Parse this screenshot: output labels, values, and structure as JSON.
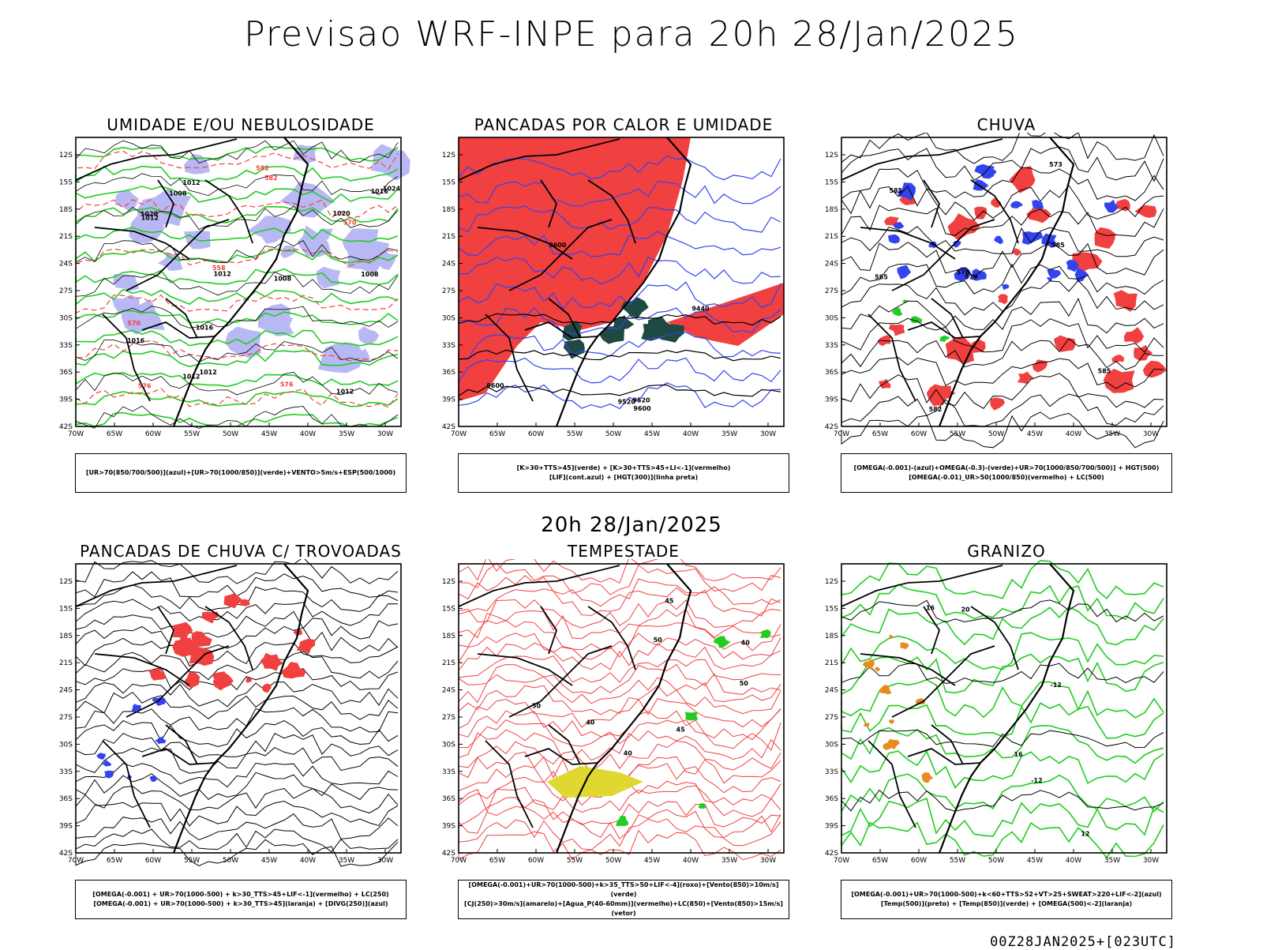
{
  "main_title": "Previsao WRF-INPE  para 20h 28/Jan/2025",
  "mid_title": "20h 28/Jan/2025",
  "footer": "00Z28JAN2025+[023UTC]",
  "lat_ticks": [
    "12S",
    "15S",
    "18S",
    "21S",
    "24S",
    "27S",
    "30S",
    "33S",
    "36S",
    "39S",
    "42S"
  ],
  "lon_ticks": [
    "70W",
    "65W",
    "60W",
    "55W",
    "50W",
    "45W",
    "40W",
    "35W",
    "30W"
  ],
  "colors": {
    "green": "#22cc22",
    "blue": "#3344ee",
    "red": "#f04040",
    "lavender": "#b8b8f4",
    "darkteal": "#1f4a44",
    "yellow": "#e0d830",
    "orange": "#e88b20",
    "magenta": "#cc22cc"
  },
  "panels": [
    {
      "title": "UMIDADE E/OU NEBULOSIDADE",
      "legend": [
        "[UR>70(850/700/500)](azul)+[UR>70(1000/850)](verde)+VENTO>5m/s+ESP(500/1000)"
      ],
      "contour_labels": [
        "1008",
        "1008",
        "1012",
        "1012",
        "1016",
        "1012",
        "1008",
        "1012",
        "1016",
        "1016",
        "1020",
        "1012",
        "1020",
        "1024",
        "1012",
        "582",
        "576",
        "570",
        "582",
        "576",
        "570",
        "558"
      ]
    },
    {
      "title": "PANCADAS POR CALOR E UMIDADE",
      "legend": [
        "[K>30+TTS>45](verde) + [K>30+TTS>45+LI<-1](vermelho)",
        "[LIF](cont.azul) + [HGT(300)](linha preta)"
      ],
      "contour_labels": [
        "9600",
        "9520",
        "9600",
        "9520",
        "9440",
        "9600"
      ]
    },
    {
      "title": "CHUVA",
      "legend": [
        "[OMEGA(-0.001)-(azul)+OMEGA(-0.3)-(verde)+UR>70(1000/850/700/500)] + HGT(500)",
        "[OMEGA(-0.01)_UR>50(1000/850)(vermelho) + LC(500)"
      ],
      "contour_labels": [
        "585",
        "585",
        "585",
        "582",
        "579",
        "576",
        "573",
        "585"
      ]
    },
    {
      "title": "PANCADAS DE CHUVA C/ TROVOADAS",
      "legend": [
        "[OMEGA(-0.001) + UR>70(1000-500) + k>30_TTS>45+LIF<-1](vermelho) + LC(250)",
        "[OMEGA(-0.001) + UR>70(1000-500) + k>30_TTS>45](laranja) + [DIVG(250)](azul)"
      ],
      "contour_labels": []
    },
    {
      "title": "TEMPESTADE",
      "legend": [
        "[OMEGA(-0.001)+UR>70(1000-500)+k>35_TTS>50+LIF<-4](roxo)+[Vento(850)>10m/s](verde)",
        "[CJ(250)>30m/s](amarelo)+[Agua_P(40-60mm)](vermelho)+LC(850)+[Vento(850)>15m/s](vetor)"
      ],
      "contour_labels": [
        "40",
        "50",
        "40",
        "45",
        "50",
        "40",
        "45",
        "50"
      ]
    },
    {
      "title": "GRANIZO",
      "legend": [
        "[OMEGA(-0.001)+UR>70(1000-500)+k<60+TTS>52+VT>25+SWEAT>220+LIF<-2](azul)",
        "[Temp(500)](preto) + [Temp(850)](verde) + [OMEGA(500)<-2](laranja)"
      ],
      "contour_labels": [
        "-12",
        "12",
        "16",
        "20",
        "16",
        "-12"
      ]
    }
  ]
}
